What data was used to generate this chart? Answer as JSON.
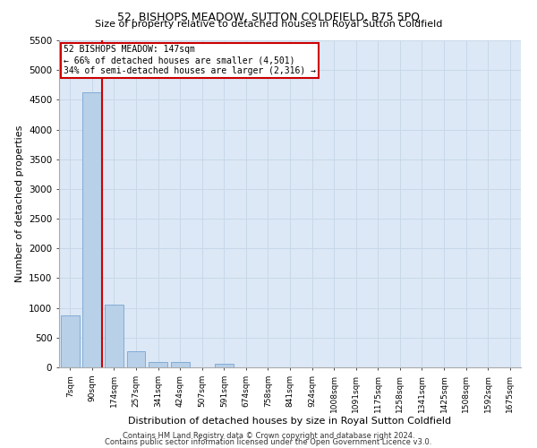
{
  "title": "52, BISHOPS MEADOW, SUTTON COLDFIELD, B75 5PQ",
  "subtitle": "Size of property relative to detached houses in Royal Sutton Coldfield",
  "xlabel": "Distribution of detached houses by size in Royal Sutton Coldfield",
  "ylabel": "Number of detached properties",
  "footnote1": "Contains HM Land Registry data © Crown copyright and database right 2024.",
  "footnote2": "Contains public sector information licensed under the Open Government Licence v3.0.",
  "categories": [
    "7sqm",
    "90sqm",
    "174sqm",
    "257sqm",
    "341sqm",
    "424sqm",
    "507sqm",
    "591sqm",
    "674sqm",
    "758sqm",
    "841sqm",
    "924sqm",
    "1008sqm",
    "1091sqm",
    "1175sqm",
    "1258sqm",
    "1341sqm",
    "1425sqm",
    "1508sqm",
    "1592sqm",
    "1675sqm"
  ],
  "values": [
    870,
    4620,
    1060,
    270,
    90,
    90,
    0,
    60,
    0,
    0,
    0,
    0,
    0,
    0,
    0,
    0,
    0,
    0,
    0,
    0,
    0
  ],
  "bar_color": "#b8d0e8",
  "bar_edge_color": "#6699cc",
  "grid_color": "#c8d8e8",
  "background_color": "#dce8f5",
  "red_line_color": "#cc0000",
  "annotation_text": "52 BISHOPS MEADOW: 147sqm\n← 66% of detached houses are smaller (4,501)\n34% of semi-detached houses are larger (2,316) →",
  "annotation_box_color": "#ffffff",
  "annotation_border_color": "#cc0000",
  "ylim": [
    0,
    5500
  ],
  "yticks": [
    0,
    500,
    1000,
    1500,
    2000,
    2500,
    3000,
    3500,
    4000,
    4500,
    5000,
    5500
  ],
  "title_fontsize": 9,
  "subtitle_fontsize": 8,
  "xlabel_fontsize": 8,
  "ylabel_fontsize": 8,
  "footnote_fontsize": 6
}
